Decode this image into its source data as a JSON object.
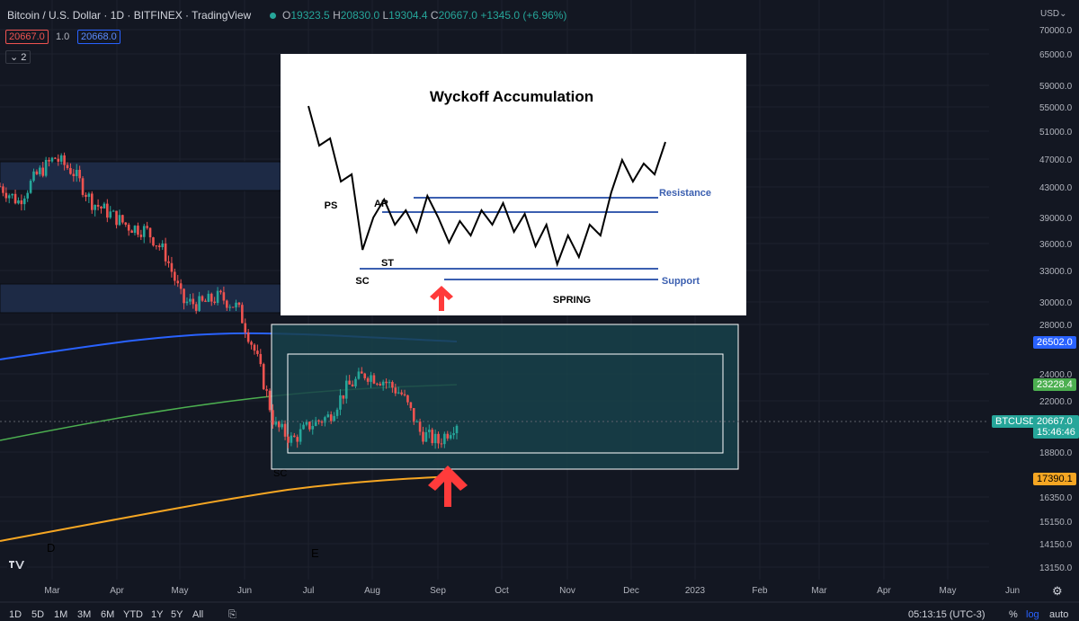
{
  "header": {
    "symbol_title": "Bitcoin / U.S. Dollar · 1D · BITFINEX · TradingView",
    "ohlc": {
      "o_label": "O",
      "o": "19323.5",
      "h_label": "H",
      "h": "20830.0",
      "l_label": "L",
      "l": "19304.4",
      "c_label": "C",
      "c": "20667.0",
      "change": "+1345.0 (+6.96%)"
    },
    "bid": "20667.0",
    "spread": "1.0",
    "ask": "20668.0",
    "indicators_count": "2"
  },
  "price_axis": {
    "currency": "USD",
    "ticks": [
      "70000.0",
      "65000.0",
      "59000.0",
      "55000.0",
      "51000.0",
      "47000.0",
      "43000.0",
      "39000.0",
      "36000.0",
      "33000.0",
      "30000.0",
      "28000.0",
      "24000.0",
      "22000.0",
      "18800.0",
      "16350.0",
      "15150.0",
      "14150.0",
      "13150.0"
    ],
    "labels": {
      "ma_blue": "26502.0",
      "ma_green": "23228.4",
      "ticker": "BTCUSD",
      "last_price": "20667.0",
      "countdown": "15:46:46",
      "ma_orange": "17390.1"
    }
  },
  "time_axis": {
    "ticks": [
      "Mar",
      "Apr",
      "May",
      "Jun",
      "Jul",
      "Aug",
      "Sep",
      "Oct",
      "Nov",
      "Dec",
      "2023",
      "Feb",
      "Mar",
      "Apr",
      "May",
      "Jun"
    ]
  },
  "annotations": {
    "d_label": "D",
    "e_label": "E",
    "sc_label": "SC"
  },
  "bottom_bar": {
    "ranges": [
      "1D",
      "5D",
      "1M",
      "3M",
      "6M",
      "YTD",
      "1Y",
      "5Y",
      "All"
    ],
    "clock": "05:13:15 (UTC-3)",
    "percent": "%",
    "log": "log",
    "auto": "auto"
  },
  "colors": {
    "bg": "#131722",
    "up": "#26a69a",
    "down": "#ef5350",
    "ma_blue": "#2962ff",
    "ma_green": "#4caf50",
    "ma_orange": "#f5a623",
    "arrow": "#ff3b3b",
    "wyckoff_line": "#3b5fb0"
  },
  "chart_data": [
    {
      "type": "line",
      "title": "Bitcoin / U.S. Dollar · 1D · BITFINEX",
      "x_ticks": [
        "Mar",
        "Apr",
        "May",
        "Jun",
        "Jul",
        "Aug",
        "Sep"
      ],
      "series": [
        {
          "name": "BTCUSD close",
          "values": [
            43000,
            41000,
            44500,
            47000,
            45000,
            41000,
            39500,
            38000,
            37500,
            35000,
            30000,
            29800,
            30500,
            29500,
            25500,
            20500,
            19500,
            20500,
            21000,
            23000,
            24000,
            23500,
            22500,
            20000,
            19400,
            20667
          ]
        }
      ],
      "last": 20667.0,
      "y_scale": "log"
    },
    {
      "type": "line",
      "title": "Wyckoff Accumulation",
      "annotations": [
        "PS",
        "SC",
        "AR",
        "ST",
        "SPRING",
        "Resistance",
        "Support"
      ],
      "series": [
        {
          "values": [
            100,
            78,
            82,
            58,
            62,
            20,
            38,
            48,
            34,
            42,
            30,
            50,
            38,
            24,
            36,
            28,
            42,
            34,
            46,
            30,
            40,
            22,
            34,
            12,
            28,
            16,
            34,
            28,
            52,
            70,
            58,
            68,
            62,
            80
          ]
        }
      ]
    }
  ]
}
